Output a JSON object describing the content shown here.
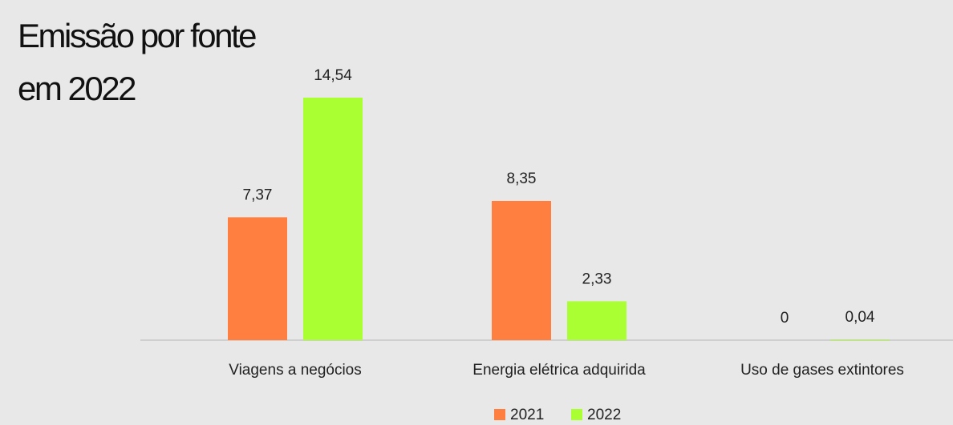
{
  "chart_data": {
    "type": "bar",
    "title": "Emissão por fonte em 2022",
    "categories": [
      "Viagens a negócios",
      "Energia elétrica adquirida",
      "Uso de gases extintores"
    ],
    "series": [
      {
        "name": "2021",
        "color": "#ff7f40",
        "values": [
          7.37,
          8.35,
          0
        ],
        "value_labels": [
          "7,37",
          "8,35",
          "0"
        ]
      },
      {
        "name": "2022",
        "color": "#aaff33",
        "values": [
          14.54,
          2.33,
          0.04
        ],
        "value_labels": [
          "14,54",
          "2,33",
          "0,04"
        ]
      }
    ]
  }
}
